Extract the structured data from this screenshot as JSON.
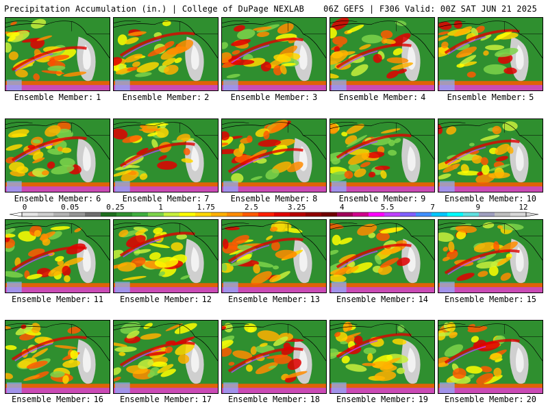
{
  "header": {
    "title": "Precipitation Accumulation (in.) | College of DuPage NEXLAB",
    "model_info": "06Z GEFS | F306 Valid: 00Z SAT JUN 21 2025"
  },
  "member_label": "Ensemble Member:",
  "panels": [
    {
      "member": "1"
    },
    {
      "member": "2"
    },
    {
      "member": "3"
    },
    {
      "member": "4"
    },
    {
      "member": "5"
    },
    {
      "member": "6"
    },
    {
      "member": "7"
    },
    {
      "member": "8"
    },
    {
      "member": "9"
    },
    {
      "member": "10"
    },
    {
      "member": "11"
    },
    {
      "member": "12"
    },
    {
      "member": "13"
    },
    {
      "member": "14"
    },
    {
      "member": "15"
    },
    {
      "member": "16"
    },
    {
      "member": "17"
    },
    {
      "member": "18"
    },
    {
      "member": "19"
    },
    {
      "member": "20"
    }
  ],
  "colorbar": {
    "tick_labels": [
      "0",
      "0.05",
      "0.25",
      "1",
      "1.75",
      "2.5",
      "3.25",
      "4",
      "5.5",
      "7",
      "9",
      "12"
    ],
    "colors": [
      "#e6e6e6",
      "#cfcfcf",
      "#b4b4b4",
      "#969696",
      "#6e6e6e",
      "#1e6e1e",
      "#2f8f2f",
      "#3fae3f",
      "#7cd34a",
      "#c8f03c",
      "#ffff00",
      "#ffd700",
      "#ffb000",
      "#ff8c00",
      "#ff5a00",
      "#ff2000",
      "#e00000",
      "#b80000",
      "#900000",
      "#700000",
      "#a0005a",
      "#d0008c",
      "#ff00ff",
      "#c040ff",
      "#8060ff",
      "#4090ff",
      "#00c8ff",
      "#00ffff",
      "#60e0e0",
      "#a0a0c0",
      "#c0c0c0",
      "#d8d8d8"
    ]
  }
}
